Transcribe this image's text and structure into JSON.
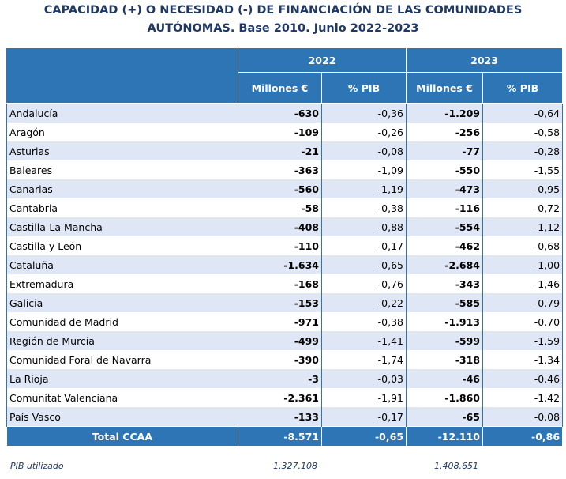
{
  "title": {
    "line1": "CAPACIDAD (+) O NECESIDAD (-) DE FINANCIACIÓN DE LAS COMUNIDADES",
    "line2": "AUTÓNOMAS. Base 2010. Junio 2022-2023"
  },
  "header": {
    "year1": "2022",
    "year2": "2023",
    "col_millones": "Millones €",
    "col_pib": "% PIB"
  },
  "rows": [
    {
      "name": "Andalucía",
      "m2022": "-630",
      "p2022": "-0,36",
      "m2023": "-1.209",
      "p2023": "-0,64"
    },
    {
      "name": "Aragón",
      "m2022": "-109",
      "p2022": "-0,26",
      "m2023": "-256",
      "p2023": "-0,58"
    },
    {
      "name": "Asturias",
      "m2022": "-21",
      "p2022": "-0,08",
      "m2023": "-77",
      "p2023": "-0,28"
    },
    {
      "name": "Baleares",
      "m2022": "-363",
      "p2022": "-1,09",
      "m2023": "-550",
      "p2023": "-1,55"
    },
    {
      "name": "Canarias",
      "m2022": "-560",
      "p2022": "-1,19",
      "m2023": "-473",
      "p2023": "-0,95"
    },
    {
      "name": "Cantabria",
      "m2022": "-58",
      "p2022": "-0,38",
      "m2023": "-116",
      "p2023": "-0,72"
    },
    {
      "name": "Castilla-La Mancha",
      "m2022": "-408",
      "p2022": "-0,88",
      "m2023": "-554",
      "p2023": "-1,12"
    },
    {
      "name": "Castilla y León",
      "m2022": "-110",
      "p2022": "-0,17",
      "m2023": "-462",
      "p2023": "-0,68"
    },
    {
      "name": "Cataluña",
      "m2022": "-1.634",
      "p2022": "-0,65",
      "m2023": "-2.684",
      "p2023": "-1,00"
    },
    {
      "name": "Extremadura",
      "m2022": "-168",
      "p2022": "-0,76",
      "m2023": "-343",
      "p2023": "-1,46"
    },
    {
      "name": "Galicia",
      "m2022": "-153",
      "p2022": "-0,22",
      "m2023": "-585",
      "p2023": "-0,79"
    },
    {
      "name": "Comunidad de Madrid",
      "m2022": "-971",
      "p2022": "-0,38",
      "m2023": "-1.913",
      "p2023": "-0,70"
    },
    {
      "name": "Región de Murcia",
      "m2022": "-499",
      "p2022": "-1,41",
      "m2023": "-599",
      "p2023": "-1,59"
    },
    {
      "name": "Comunidad Foral de Navarra",
      "m2022": "-390",
      "p2022": "-1,74",
      "m2023": "-318",
      "p2023": "-1,34"
    },
    {
      "name": "La Rioja",
      "m2022": "-3",
      "p2022": "-0,03",
      "m2023": "-46",
      "p2023": "-0,46"
    },
    {
      "name": "Comunitat Valenciana",
      "m2022": "-2.361",
      "p2022": "-1,91",
      "m2023": "-1.860",
      "p2023": "-1,42"
    },
    {
      "name": "País Vasco",
      "m2022": "-133",
      "p2022": "-0,17",
      "m2023": "-65",
      "p2023": "-0,08"
    }
  ],
  "total": {
    "name": "Total CCAA",
    "m2022": "-8.571",
    "p2022": "-0,65",
    "m2023": "-12.110",
    "p2023": "-0,86"
  },
  "footer": {
    "label": "PIB utilizado",
    "pib2022": "1.327.108",
    "pib2023": "1.408.651"
  },
  "colors": {
    "header_bg": "#2e75b6",
    "stripe_bg": "#dfe6f5",
    "title_color": "#1f3864"
  }
}
